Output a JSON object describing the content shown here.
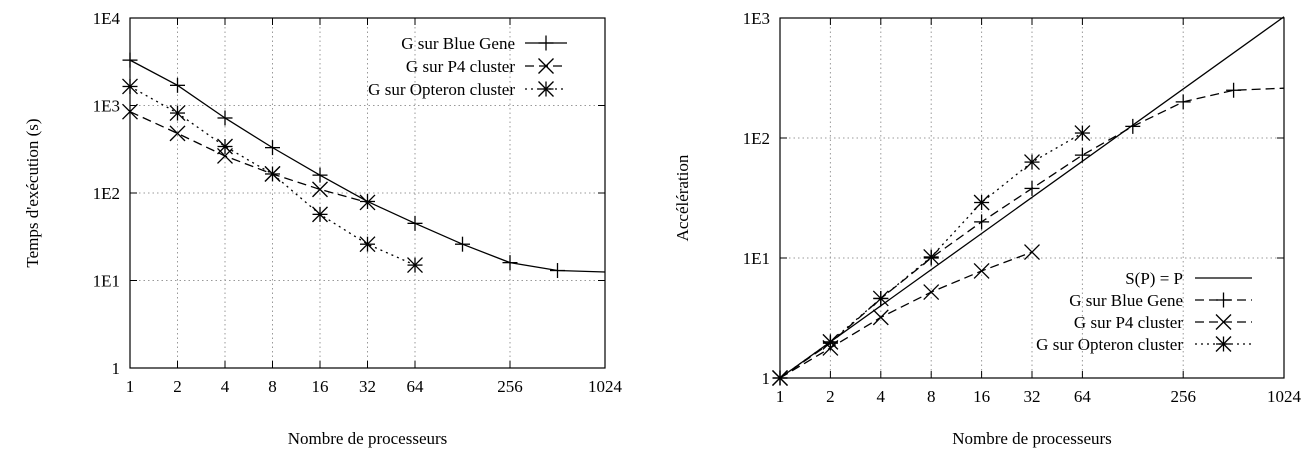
{
  "chart_data": [
    {
      "type": "line",
      "title": "",
      "xlabel": "Nombre de processeurs",
      "ylabel": "Temps d'exécution (s)",
      "xscale": "log2",
      "yscale": "log10",
      "xlim": [
        1,
        1024
      ],
      "ylim": [
        1,
        10000
      ],
      "x_ticks": [
        1,
        2,
        4,
        8,
        16,
        32,
        64,
        256,
        1024
      ],
      "x_tick_labels": [
        "1",
        "2",
        "4",
        "8",
        "16",
        "32",
        "64",
        "256",
        "1024"
      ],
      "y_ticks": [
        1,
        10,
        100,
        1000,
        10000
      ],
      "y_tick_labels": [
        "1",
        "1E1",
        "1E2",
        "1E3",
        "1E4"
      ],
      "grid": true,
      "legend_position": "top-right",
      "series": [
        {
          "name": "G sur Blue Gene",
          "line": "solid",
          "marker": "plus",
          "x": [
            1,
            2,
            4,
            8,
            16,
            32,
            64,
            128,
            256,
            512,
            1024
          ],
          "y": [
            3300,
            1700,
            720,
            330,
            160,
            80,
            45,
            26,
            16,
            13,
            12.5
          ],
          "marker_x": [
            1,
            2,
            4,
            8,
            16,
            32,
            64,
            128,
            256,
            512
          ]
        },
        {
          "name": "G sur P4 cluster",
          "line": "dashed",
          "marker": "cross",
          "x": [
            1,
            2,
            4,
            8,
            16,
            32
          ],
          "y": [
            850,
            480,
            265,
            165,
            110,
            78
          ]
        },
        {
          "name": "G sur Opteron cluster",
          "line": "dotted",
          "marker": "star",
          "x": [
            1,
            2,
            4,
            8,
            16,
            32,
            64
          ],
          "y": [
            1650,
            820,
            340,
            165,
            57,
            26,
            15
          ]
        }
      ]
    },
    {
      "type": "line",
      "title": "",
      "xlabel": "Nombre de processeurs",
      "ylabel": "Accélération",
      "xscale": "log2",
      "yscale": "log10",
      "xlim": [
        1,
        1024
      ],
      "ylim": [
        1,
        1000
      ],
      "x_ticks": [
        1,
        2,
        4,
        8,
        16,
        32,
        64,
        256,
        1024
      ],
      "x_tick_labels": [
        "1",
        "2",
        "4",
        "8",
        "16",
        "32",
        "64",
        "256",
        "1024"
      ],
      "y_ticks": [
        1,
        10,
        100,
        1000
      ],
      "y_tick_labels": [
        "1",
        "1E1",
        "1E2",
        "1E3"
      ],
      "grid": true,
      "legend_position": "bottom-right",
      "series": [
        {
          "name": "S(P) = P",
          "line": "solid",
          "marker": "none",
          "x": [
            1,
            1024
          ],
          "y": [
            1,
            1024
          ]
        },
        {
          "name": "G sur Blue Gene",
          "line": "dashed",
          "marker": "plus",
          "x": [
            1,
            2,
            4,
            8,
            16,
            32,
            64,
            128,
            256,
            512,
            1024
          ],
          "y": [
            1,
            1.95,
            4.6,
            10,
            20,
            38,
            72,
            125,
            200,
            250,
            260
          ],
          "marker_x": [
            1,
            2,
            4,
            8,
            16,
            32,
            64,
            128,
            256,
            512
          ]
        },
        {
          "name": "G sur P4 cluster",
          "line": "dashed",
          "marker": "cross",
          "x": [
            1,
            2,
            4,
            8,
            16,
            32
          ],
          "y": [
            1,
            1.78,
            3.2,
            5.2,
            7.8,
            11.2
          ]
        },
        {
          "name": "G sur Opteron cluster",
          "line": "dotted",
          "marker": "star",
          "x": [
            1,
            2,
            4,
            8,
            16,
            32,
            64
          ],
          "y": [
            1,
            2,
            4.6,
            10.2,
            29,
            63,
            110
          ]
        }
      ]
    }
  ]
}
